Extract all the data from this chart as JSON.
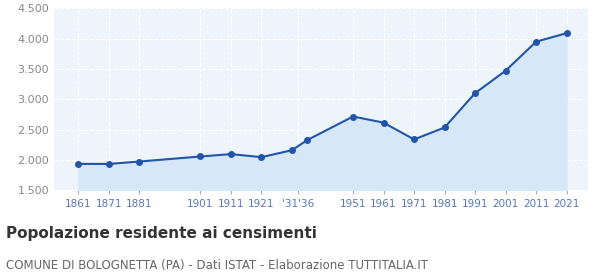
{
  "years": [
    1861,
    1871,
    1881,
    1901,
    1911,
    1921,
    1931,
    1936,
    1951,
    1961,
    1971,
    1981,
    1991,
    2001,
    2011,
    2021
  ],
  "population": [
    1937,
    1936,
    1976,
    2059,
    2098,
    2048,
    2163,
    2330,
    2718,
    2617,
    2340,
    2537,
    3103,
    3473,
    3951,
    4092
  ],
  "tick_positions": [
    1861,
    1871,
    1881,
    1901,
    1911,
    1921,
    1933,
    1951,
    1961,
    1971,
    1981,
    1991,
    2001,
    2011,
    2021
  ],
  "tick_labels": [
    "1861",
    "1871",
    "1881",
    "1901",
    "1911",
    "1921",
    "'31'36",
    "1951",
    "1961",
    "1971",
    "1981",
    "1991",
    "2001",
    "2011",
    "2021"
  ],
  "line_color": "#2255aa",
  "fill_color": "#d6e8f7",
  "marker_color": "#2255aa",
  "bg_color": "#ffffff",
  "plot_bg_color": "#eef4fb",
  "grid_color": "#ffffff",
  "ylim": [
    1500,
    4500
  ],
  "yticks": [
    1500,
    2000,
    2500,
    3000,
    3500,
    4000,
    4500
  ],
  "title": "Popolazione residente ai censimenti",
  "subtitle": "COMUNE DI BOLOGNETTA (PA) - Dati ISTAT - Elaborazione TUTTITALIA.IT",
  "title_fontsize": 11,
  "subtitle_fontsize": 8.5,
  "axis_label_color": "#5577bb",
  "tick_color": "#888888",
  "xlim": [
    1853,
    2028
  ]
}
